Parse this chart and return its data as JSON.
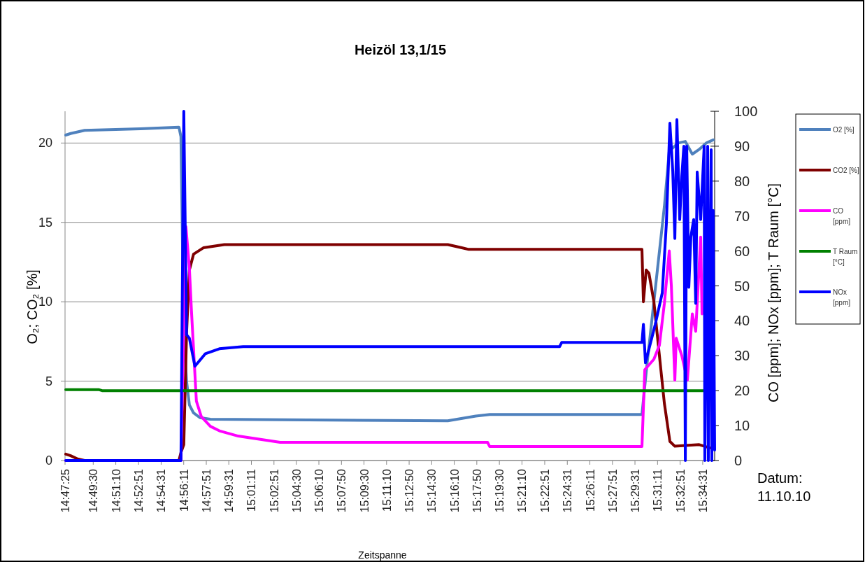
{
  "chart_data": {
    "type": "line",
    "title": "Heizöl 13,1/15",
    "xlabel": "Zeitspanne",
    "ylabel": "O₂; CO₂ [%]",
    "y2label": "CO [ppm]; NOx [ppm]; T Raum [°C]",
    "annotations": [
      "Datum: 11.10.10"
    ],
    "xlim": [
      14.7903,
      15.59
    ],
    "ylim": [
      0,
      22
    ],
    "yticks": [
      0,
      5,
      10,
      15,
      20
    ],
    "y2lim": [
      0,
      100
    ],
    "y2ticks": [
      0,
      10,
      20,
      30,
      40,
      50,
      60,
      70,
      80,
      90,
      100
    ],
    "xticks": [
      {
        "value": 14.7903,
        "label": "14:47:25"
      },
      {
        "value": 14.825,
        "label": "14:49:30"
      },
      {
        "value": 14.8528,
        "label": "14:51:10"
      },
      {
        "value": 14.8808,
        "label": "14:52:51"
      },
      {
        "value": 14.9086,
        "label": "14:54:31"
      },
      {
        "value": 14.9364,
        "label": "14:56:11"
      },
      {
        "value": 14.9642,
        "label": "14:57:51"
      },
      {
        "value": 14.9919,
        "label": "14:59:31"
      },
      {
        "value": 15.0197,
        "label": "15:01:11"
      },
      {
        "value": 15.0475,
        "label": "15:02:51"
      },
      {
        "value": 15.075,
        "label": "15:04:30"
      },
      {
        "value": 15.1028,
        "label": "15:06:10"
      },
      {
        "value": 15.1306,
        "label": "15:07:50"
      },
      {
        "value": 15.1583,
        "label": "15:09:30"
      },
      {
        "value": 15.1861,
        "label": "15:11:10"
      },
      {
        "value": 15.2139,
        "label": "15:12:50"
      },
      {
        "value": 15.2417,
        "label": "15:14:30"
      },
      {
        "value": 15.2694,
        "label": "15:16:10"
      },
      {
        "value": 15.2972,
        "label": "15:17:50"
      },
      {
        "value": 15.325,
        "label": "15:19:30"
      },
      {
        "value": 15.3528,
        "label": "15:21:10"
      },
      {
        "value": 15.3808,
        "label": "15:22:51"
      },
      {
        "value": 15.4086,
        "label": "15:24:31"
      },
      {
        "value": 15.4364,
        "label": "15:26:11"
      },
      {
        "value": 15.4642,
        "label": "15:27:51"
      },
      {
        "value": 15.4919,
        "label": "15:29:31"
      },
      {
        "value": 15.5197,
        "label": "15:31:11"
      },
      {
        "value": 15.5475,
        "label": "15:32:51"
      },
      {
        "value": 15.5753,
        "label": "15:34:31"
      }
    ],
    "grid": "y",
    "legend": "right",
    "marker": "none",
    "line_style": "solid",
    "series": [
      {
        "name": "O2 [%]",
        "color": "#4f81bd",
        "x": [
          14.7912,
          14.7972,
          14.8144,
          14.8832,
          14.9305,
          14.933,
          14.9365,
          14.9399,
          14.9434,
          14.9485,
          14.9563,
          14.9692,
          15.2615,
          15.2959,
          15.3131,
          15.5005,
          15.5066,
          15.5195,
          15.5281,
          15.5341,
          15.5453,
          15.5539,
          15.5625,
          15.571,
          15.5796,
          15.5882
        ],
        "values": [
          20.5,
          20.6,
          20.8,
          20.9,
          21,
          20.4,
          8,
          5,
          3.5,
          3,
          2.7,
          2.6,
          2.5,
          2.8,
          2.9,
          2.9,
          6,
          12,
          16,
          19.5,
          20,
          20.1,
          19.3,
          19.6,
          20,
          20.2
        ]
      },
      {
        "name": "CO2 [%]",
        "color": "#7f0000",
        "x": [
          14.7912,
          14.7972,
          14.8058,
          14.8144,
          14.9305,
          14.933,
          14.9365,
          14.9399,
          14.9434,
          14.9485,
          14.9606,
          14.9864,
          15.2615,
          15.2787,
          15.2873,
          15.5005,
          15.5023,
          15.5057,
          15.5091,
          15.5152,
          15.5212,
          15.5281,
          15.5349,
          15.541,
          15.571,
          15.5839
        ],
        "values": [
          0.4,
          0.3,
          0.1,
          0,
          0,
          0.5,
          1,
          8,
          12,
          13,
          13.4,
          13.6,
          13.6,
          13.4,
          13.3,
          13.3,
          10,
          12,
          11.8,
          10,
          7,
          3.6,
          1.2,
          0.9,
          1,
          0.8
        ]
      },
      {
        "name": "CO [ppm]",
        "color": "#ff00ff",
        "axis": "y2",
        "x": [
          14.7912,
          14.933,
          14.9365,
          14.9391,
          14.9434,
          14.9459,
          14.952,
          14.958,
          14.9692,
          14.9803,
          15.0035,
          15.0551,
          15.3105,
          15.3131,
          15.5005,
          15.504,
          15.5152,
          15.522,
          15.5281,
          15.5341,
          15.5367,
          15.541,
          15.5427,
          15.5496,
          15.5564,
          15.5625,
          15.5667,
          15.5728,
          15.5745
        ],
        "values": [
          0,
          0,
          40,
          67,
          55,
          43,
          17,
          12.6,
          9.8,
          8.5,
          7,
          5.2,
          5.2,
          4,
          4,
          26,
          29,
          33,
          45,
          60,
          50,
          23,
          35,
          30,
          23,
          42,
          37,
          64,
          42
        ]
      },
      {
        "name": "T Raum [°C]",
        "color": "#008000",
        "axis": "y2",
        "x": [
          14.7912,
          14.8316,
          14.8359,
          15.5771
        ],
        "values": [
          20.3,
          20.3,
          20,
          20
        ]
      },
      {
        "name": "NOx [ppm]",
        "color": "#0000ff",
        "axis": "y2",
        "x": [
          14.7912,
          14.933,
          14.9365,
          14.9399,
          14.9434,
          14.9502,
          14.9631,
          14.9803,
          15.0096,
          15.3991,
          15.4017,
          15.5005,
          15.5023,
          15.5048,
          15.5169,
          15.5255,
          15.5306,
          15.5349,
          15.5384,
          15.541,
          15.5435,
          15.547,
          15.5496,
          15.5521,
          15.5539,
          15.5556,
          15.5582,
          15.5607,
          15.5642,
          15.5667,
          15.5685,
          15.5728,
          15.5771,
          15.5779,
          15.5814,
          15.5822,
          15.5857,
          15.5865,
          15.5882,
          15.59
        ],
        "values": [
          0,
          0,
          100,
          36,
          35,
          27,
          30.6,
          32,
          32.6,
          32.6,
          33.8,
          33.8,
          39,
          28,
          39,
          48,
          68,
          96.6,
          83,
          63.6,
          97.6,
          69,
          81.6,
          90,
          0,
          90,
          49.6,
          64,
          69,
          45,
          82.6,
          69,
          90,
          0,
          90,
          0,
          89,
          0,
          71.6,
          3
        ]
      }
    ]
  }
}
